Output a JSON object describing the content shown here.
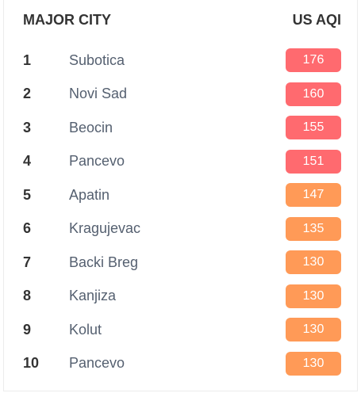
{
  "header": {
    "city_label": "MAJOR CITY",
    "aqi_label": "US AQI"
  },
  "colors": {
    "unhealthy": "#ff6a6f",
    "unhealthy_for_sensitive": "#ff9a57"
  },
  "rows": [
    {
      "rank": "1",
      "city": "Subotica",
      "aqi": "176",
      "level": "unhealthy"
    },
    {
      "rank": "2",
      "city": "Novi Sad",
      "aqi": "160",
      "level": "unhealthy"
    },
    {
      "rank": "3",
      "city": "Beocin",
      "aqi": "155",
      "level": "unhealthy"
    },
    {
      "rank": "4",
      "city": "Pancevo",
      "aqi": "151",
      "level": "unhealthy"
    },
    {
      "rank": "5",
      "city": "Apatin",
      "aqi": "147",
      "level": "sensitive"
    },
    {
      "rank": "6",
      "city": "Kragujevac",
      "aqi": "135",
      "level": "sensitive"
    },
    {
      "rank": "7",
      "city": "Backi Breg",
      "aqi": "130",
      "level": "sensitive"
    },
    {
      "rank": "8",
      "city": "Kanjiza",
      "aqi": "130",
      "level": "sensitive"
    },
    {
      "rank": "9",
      "city": "Kolut",
      "aqi": "130",
      "level": "sensitive"
    },
    {
      "rank": "10",
      "city": "Pancevo",
      "aqi": "130",
      "level": "sensitive"
    }
  ]
}
